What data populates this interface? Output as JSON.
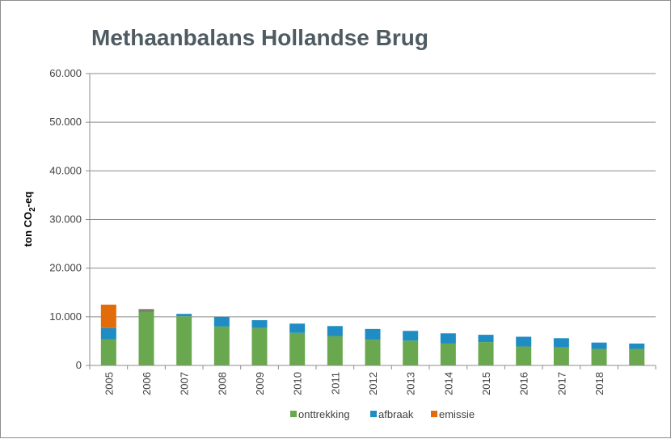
{
  "chart_data": {
    "type": "bar",
    "stacked": true,
    "title": "Methaanbalans Hollandse Brug",
    "ylabel_parts": [
      "ton CO",
      "2",
      "-eq"
    ],
    "ylim": [
      0,
      60000
    ],
    "yticks": [
      "0",
      "10.000",
      "20.000",
      "30.000",
      "40.000",
      "50.000",
      "60.000"
    ],
    "ytick_values": [
      0,
      10000,
      20000,
      30000,
      40000,
      50000,
      60000
    ],
    "categories": [
      "2005",
      "2006",
      "2007",
      "2008",
      "2009",
      "2010",
      "2011",
      "2012",
      "2013",
      "2014",
      "2015",
      "2016",
      "2017",
      "2018",
      ""
    ],
    "grid": true,
    "legend_position": "bottom",
    "series": [
      {
        "name": "onttrekking",
        "color": "#6aa84f",
        "values": [
          5400,
          11000,
          10100,
          8000,
          7700,
          6700,
          6000,
          5300,
          5100,
          4500,
          4800,
          3900,
          3700,
          3400,
          3400
        ]
      },
      {
        "name": "afbraak",
        "color": "#1f8cc4",
        "values": [
          2300,
          300,
          500,
          2000,
          1600,
          1900,
          2100,
          2200,
          2000,
          2100,
          1500,
          2000,
          1900,
          1300,
          1100
        ]
      },
      {
        "name": "emissie",
        "color": "#e36c0a",
        "values": [
          4800,
          300,
          0,
          0,
          0,
          0,
          0,
          0,
          0,
          0,
          0,
          0,
          0,
          0,
          0
        ]
      }
    ]
  }
}
